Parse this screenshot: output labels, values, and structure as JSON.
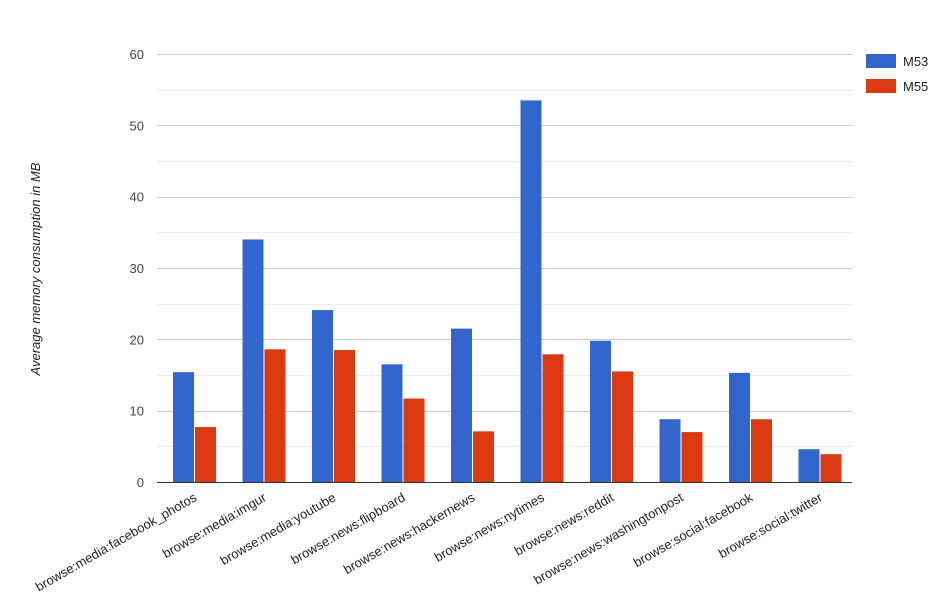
{
  "chart_data": {
    "type": "bar",
    "ylabel": "Average memory consumption in MB",
    "xlabel": "",
    "ylim": [
      0,
      60
    ],
    "y_ticks": [
      0,
      10,
      20,
      30,
      40,
      50,
      60
    ],
    "minor_gridlines": true,
    "legend_position": "right",
    "categories": [
      "browse:media:facebook_photos",
      "browse:media:imgur",
      "browse:media:youtube",
      "browse:news:flipboard",
      "browse:news:hackernews",
      "browse:news:nytimes",
      "browse:news:reddit",
      "browse:news:washingtonpost",
      "browse:social:facebook",
      "browse:social:twitter"
    ],
    "series": [
      {
        "name": "M53",
        "color": "#3366cc",
        "values": [
          15.4,
          34.0,
          24.1,
          16.5,
          21.5,
          53.5,
          19.8,
          8.8,
          15.3,
          4.6
        ]
      },
      {
        "name": "M55",
        "color": "#dc3912",
        "values": [
          7.7,
          18.6,
          18.5,
          11.7,
          7.1,
          17.9,
          15.5,
          7.0,
          8.8,
          3.9
        ]
      }
    ]
  }
}
